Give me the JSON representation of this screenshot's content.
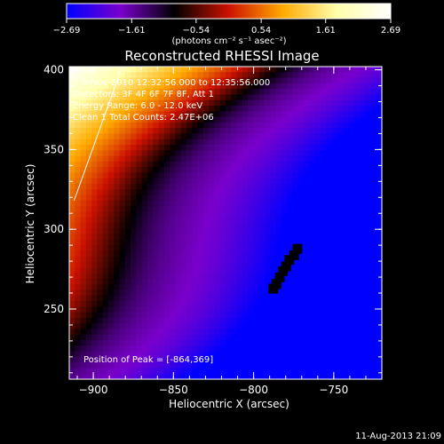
{
  "chart_data": {
    "type": "heatmap",
    "title": "Reconstructed RHESSI Image",
    "xlabel": "Heliocentric X (arcsec)",
    "ylabel": "Heliocentric Y (arcsec)",
    "xlim": [
      -915,
      -720
    ],
    "ylim": [
      206,
      402
    ],
    "x_ticks": [
      -900,
      -850,
      -800,
      -750
    ],
    "x_tick_labels": [
      "−900",
      "−850",
      "−800",
      "−750"
    ],
    "y_ticks": [
      250,
      300,
      350,
      400
    ],
    "y_tick_labels": [
      "250",
      "300",
      "350",
      "400"
    ],
    "colorbar": {
      "min": -2.69,
      "max": 2.69,
      "ticks": [
        -2.69,
        -1.61,
        -0.54,
        0.54,
        1.61,
        2.69
      ],
      "tick_labels": [
        "−2.69",
        "−1.61",
        "−0.54",
        "0.54",
        "1.61",
        "2.69"
      ],
      "unit_label": "(photons cm⁻² s⁻¹ asec⁻²)",
      "colormap": [
        "#0000ff",
        "#7a00cc",
        "#000000",
        "#cc1100",
        "#ffaa00",
        "#ffffaa",
        "#ffffff"
      ]
    },
    "annotations": [
      "3-Nov-2010 12:32:56.000 to 12:35:56.000",
      "Detectors: 3F 4F 6F 7F 8F, Att 1",
      "Energy Range: 6.0 - 12.0 keV",
      "Clean 1 Total Counts: 2.47E+06"
    ],
    "peak_label": "Position of Peak = [-864,369]",
    "peak_position": [
      -864,
      369
    ],
    "limb_line": [
      [
        -912,
        318
      ],
      [
        -882,
        402
      ]
    ]
  },
  "footer": {
    "timestamp": "11-Aug-2013 21:09"
  }
}
